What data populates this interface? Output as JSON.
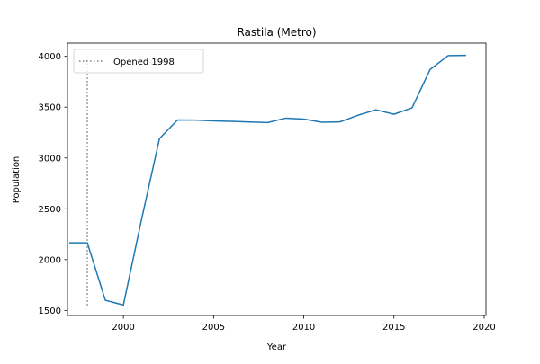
{
  "chart_data": {
    "type": "line",
    "title": "Rastila (Metro)",
    "xlabel": "Year",
    "ylabel": "Population",
    "xlim": [
      1996.9,
      2020.1
    ],
    "ylim": [
      1450,
      4130
    ],
    "xticks": [
      2000,
      2005,
      2010,
      2015,
      2020
    ],
    "yticks": [
      1500,
      2000,
      2500,
      3000,
      3500,
      4000
    ],
    "grid": false,
    "legend_position": "top-left",
    "series": [
      {
        "color": "#1f77b4",
        "x": [
          1997,
          1998,
          1999,
          2000,
          2001,
          2002,
          2003,
          2004,
          2005,
          2006,
          2007,
          2008,
          2009,
          2010,
          2011,
          2012,
          2013,
          2014,
          2015,
          2016,
          2017,
          2018,
          2019
        ],
        "y": [
          2165,
          2165,
          1600,
          1553,
          2390,
          3190,
          3374,
          3373,
          3365,
          3360,
          3354,
          3348,
          3392,
          3383,
          3352,
          3355,
          3420,
          3474,
          3430,
          3493,
          3870,
          4007,
          4010
        ]
      }
    ],
    "vlines": [
      {
        "label": "Opened 1998",
        "x": 1998,
        "ymin": 1550,
        "ymax": 4000,
        "color": "#808080",
        "style": "dotted"
      }
    ]
  }
}
